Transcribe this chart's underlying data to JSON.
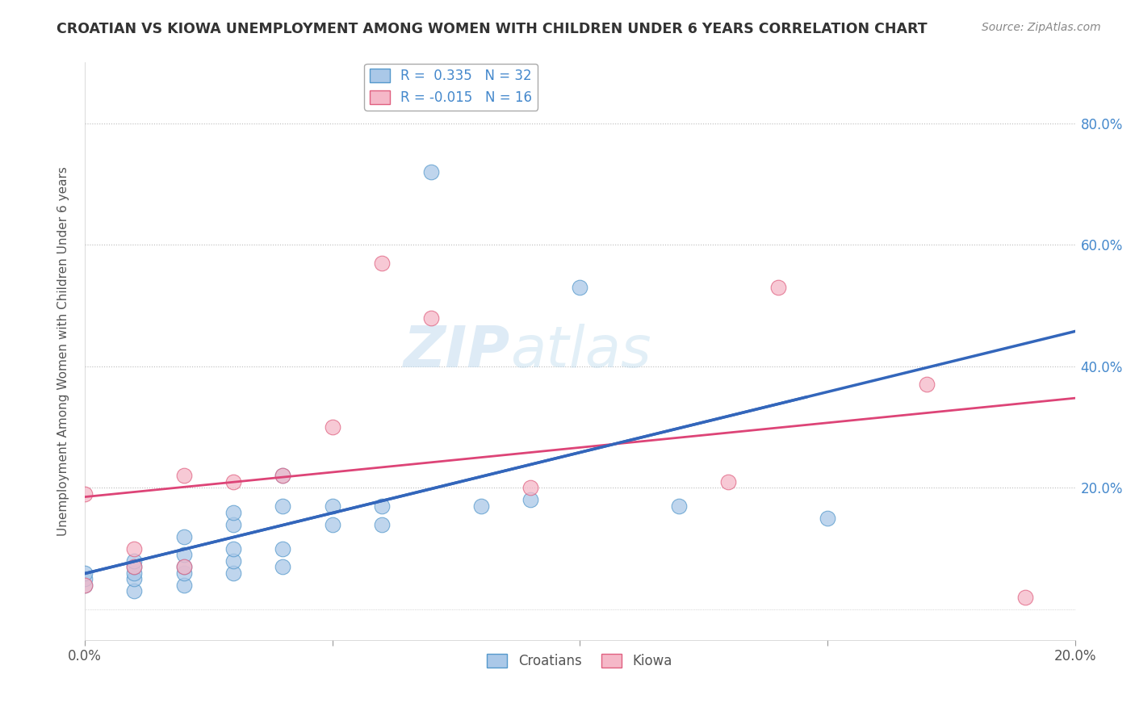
{
  "title": "CROATIAN VS KIOWA UNEMPLOYMENT AMONG WOMEN WITH CHILDREN UNDER 6 YEARS CORRELATION CHART",
  "source": "Source: ZipAtlas.com",
  "ylabel": "Unemployment Among Women with Children Under 6 years",
  "xlim": [
    0.0,
    0.2
  ],
  "ylim": [
    -0.05,
    0.9
  ],
  "xtick_values": [
    0.0,
    0.05,
    0.1,
    0.15,
    0.2
  ],
  "xtick_labels": [
    "0.0%",
    "",
    "",
    "",
    "20.0%"
  ],
  "ytick_values": [
    0.2,
    0.4,
    0.6,
    0.8
  ],
  "ytick_labels": [
    "20.0%",
    "40.0%",
    "60.0%",
    "80.0%"
  ],
  "croatians_R": 0.335,
  "croatians_N": 32,
  "kiowa_R": -0.015,
  "kiowa_N": 16,
  "croatians_color": "#aac8e8",
  "kiowa_color": "#f5b8c8",
  "croatians_edge_color": "#5599cc",
  "kiowa_edge_color": "#e06080",
  "croatians_line_color": "#3366bb",
  "kiowa_line_color": "#dd4477",
  "watermark_zip": "ZIP",
  "watermark_atlas": "atlas",
  "background_color": "#ffffff",
  "grid_color": "#bbbbbb",
  "croatians_x": [
    0.0,
    0.0,
    0.0,
    0.01,
    0.01,
    0.01,
    0.01,
    0.01,
    0.02,
    0.02,
    0.02,
    0.02,
    0.02,
    0.03,
    0.03,
    0.03,
    0.03,
    0.03,
    0.04,
    0.04,
    0.04,
    0.04,
    0.05,
    0.05,
    0.06,
    0.06,
    0.07,
    0.08,
    0.09,
    0.1,
    0.12,
    0.15
  ],
  "croatians_y": [
    0.04,
    0.05,
    0.06,
    0.03,
    0.05,
    0.06,
    0.07,
    0.08,
    0.04,
    0.06,
    0.07,
    0.09,
    0.12,
    0.06,
    0.08,
    0.1,
    0.14,
    0.16,
    0.07,
    0.1,
    0.17,
    0.22,
    0.14,
    0.17,
    0.14,
    0.17,
    0.72,
    0.17,
    0.18,
    0.53,
    0.17,
    0.15
  ],
  "kiowa_x": [
    0.0,
    0.0,
    0.01,
    0.01,
    0.02,
    0.02,
    0.03,
    0.04,
    0.05,
    0.06,
    0.07,
    0.09,
    0.13,
    0.14,
    0.17,
    0.19
  ],
  "kiowa_y": [
    0.04,
    0.19,
    0.07,
    0.1,
    0.07,
    0.22,
    0.21,
    0.22,
    0.3,
    0.57,
    0.48,
    0.2,
    0.21,
    0.53,
    0.37,
    0.02
  ]
}
